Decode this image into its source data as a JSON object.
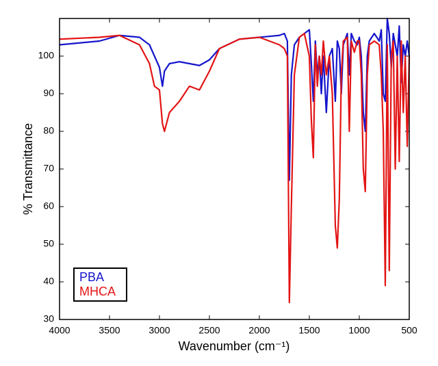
{
  "chart_data": {
    "type": "line",
    "x_label": "Wavenumber (cm⁻¹)",
    "y_label": "% Transmittance",
    "xlim": [
      4000,
      500
    ],
    "xticks": [
      4000,
      3500,
      3000,
      2500,
      2000,
      1500,
      1000,
      500
    ],
    "ylim": [
      30,
      110
    ],
    "yticks": [
      30,
      40,
      50,
      60,
      70,
      80,
      90,
      100
    ],
    "legend": "lower left",
    "x": [
      4000,
      3600,
      3400,
      3200,
      3100,
      3050,
      3000,
      2970,
      2950,
      2900,
      2800,
      2700,
      2600,
      2500,
      2400,
      2200,
      2000,
      1800,
      1750,
      1720,
      1700,
      1680,
      1650,
      1600,
      1550,
      1500,
      1480,
      1460,
      1440,
      1420,
      1400,
      1380,
      1360,
      1330,
      1300,
      1270,
      1240,
      1220,
      1200,
      1180,
      1160,
      1120,
      1100,
      1080,
      1050,
      1020,
      1000,
      980,
      960,
      940,
      920,
      900,
      850,
      800,
      780,
      760,
      740,
      720,
      700,
      680,
      660,
      640,
      620,
      600,
      580,
      560,
      540,
      520,
      500
    ],
    "series": [
      {
        "name": "PBA",
        "color": "#1414cc",
        "values": [
          103,
          104,
          105.5,
          105,
          103,
          100,
          97,
          92,
          96,
          98,
          98.5,
          98,
          97.5,
          99,
          102,
          104.5,
          105,
          105.5,
          106,
          104,
          67,
          95,
          103,
          105,
          106,
          107,
          98,
          88,
          104,
          95,
          100,
          90,
          100,
          85,
          100,
          102,
          88,
          104,
          102,
          90,
          103,
          106,
          95,
          106,
          104,
          103,
          105,
          100,
          85,
          80,
          100,
          104,
          106,
          104,
          107,
          90,
          88,
          110,
          106,
          97,
          106,
          103,
          100,
          108,
          93,
          103,
          100,
          104,
          100
        ]
      },
      {
        "name": "MHCA",
        "color": "#e31414",
        "values": [
          104.5,
          105,
          105.5,
          103,
          98,
          92,
          91,
          82,
          80,
          85,
          88,
          92,
          91,
          96,
          102,
          104.5,
          105,
          103,
          102,
          100,
          34.5,
          60,
          95,
          105,
          106,
          100,
          83,
          73,
          103,
          92,
          100,
          95,
          104,
          95,
          100,
          90,
          55,
          49,
          62,
          95,
          104,
          105,
          80,
          104,
          101,
          104,
          104,
          95,
          70,
          64,
          95,
          103,
          104,
          103,
          95,
          80,
          39,
          103,
          43,
          100,
          104,
          70,
          100,
          72,
          104,
          85,
          100,
          76,
          100
        ]
      }
    ]
  }
}
